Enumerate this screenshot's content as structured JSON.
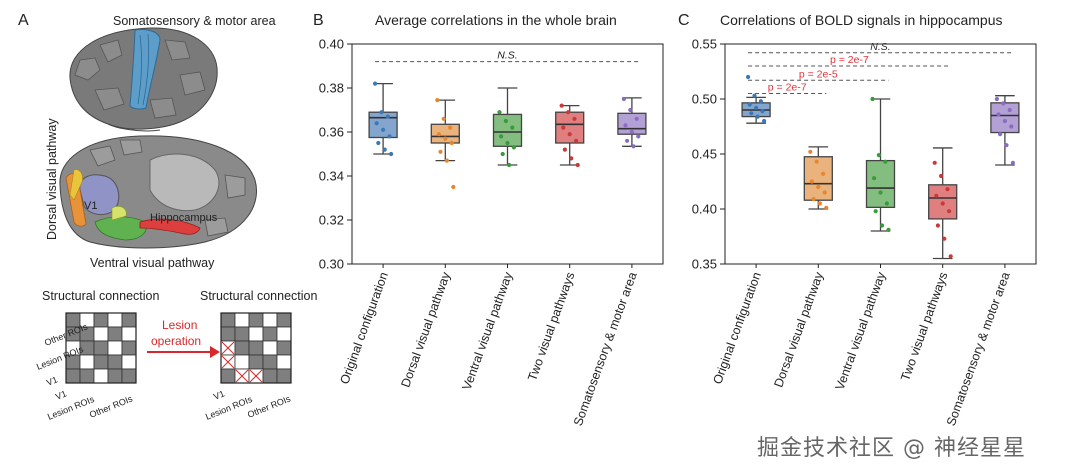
{
  "panel_a": {
    "letter": "A",
    "somatosensory_label": "Somatosensory & motor area",
    "dorsal_label": "Dorsal visual pathway",
    "ventral_label": "Ventral visual pathway",
    "v1_label": "V1",
    "hippocampus_label": "Hippocampus",
    "sc_title_left": "Structural connection",
    "sc_title_right": "Structural connection",
    "lesion_label_1": "Lesion",
    "lesion_label_2": "operation",
    "row_labels": [
      "Other ROIs",
      "Lesion ROIs",
      "V1"
    ],
    "col_labels": [
      "V1",
      "Lesion ROIs",
      "Other ROIs"
    ]
  },
  "watermark": "掘金技术社区 @ 神经星星",
  "chart_data": [
    {
      "panel": "B",
      "type": "box",
      "title": "Average correlations in the whole brain",
      "ylim": [
        0.3,
        0.4
      ],
      "yticks": [
        "0.30",
        "0.32",
        "0.34",
        "0.36",
        "0.38",
        "0.40"
      ],
      "yticks_values": [
        0.3,
        0.32,
        0.34,
        0.36,
        0.38,
        0.4
      ],
      "categories": [
        "Original configuration",
        "Dorsal visual pathway",
        "Ventral visual pathway",
        "Two visual pathways",
        "Somatosensory & motor area"
      ],
      "colors": [
        "#6f95c4",
        "#e6a466",
        "#6db36a",
        "#d9686a",
        "#a690cf"
      ],
      "dot_colors": [
        "#3b78b8",
        "#e8862e",
        "#3a9a3a",
        "#c83a3a",
        "#8a6cc0"
      ],
      "boxes": [
        {
          "min": 0.35,
          "q1": 0.3575,
          "median": 0.3665,
          "q3": 0.369,
          "max": 0.382,
          "points": [
            0.382,
            0.369,
            0.367,
            0.364,
            0.361,
            0.358,
            0.355,
            0.352,
            0.35
          ]
        },
        {
          "min": 0.347,
          "q1": 0.355,
          "median": 0.358,
          "q3": 0.3635,
          "max": 0.3745,
          "points": [
            0.3745,
            0.366,
            0.362,
            0.359,
            0.357,
            0.355,
            0.351,
            0.347,
            0.335
          ]
        },
        {
          "min": 0.345,
          "q1": 0.3535,
          "median": 0.36,
          "q3": 0.368,
          "max": 0.38,
          "points": [
            0.369,
            0.365,
            0.362,
            0.358,
            0.355,
            0.353,
            0.35,
            0.345
          ]
        },
        {
          "min": 0.345,
          "q1": 0.355,
          "median": 0.3635,
          "q3": 0.369,
          "max": 0.372,
          "points": [
            0.372,
            0.369,
            0.366,
            0.362,
            0.359,
            0.356,
            0.352,
            0.348,
            0.345
          ]
        },
        {
          "min": 0.3535,
          "q1": 0.359,
          "median": 0.3615,
          "q3": 0.3685,
          "max": 0.3755,
          "points": [
            0.375,
            0.37,
            0.366,
            0.363,
            0.36,
            0.358,
            0.356,
            0.3535
          ]
        }
      ],
      "annotations": [
        {
          "text": "N.S.",
          "y": 0.392,
          "x_from": 0,
          "x_to": 4
        }
      ]
    },
    {
      "panel": "C",
      "type": "box",
      "title": "Correlations of BOLD signals in hippocampus",
      "ylim": [
        0.35,
        0.55
      ],
      "yticks": [
        "0.35",
        "0.40",
        "0.45",
        "0.50",
        "0.55"
      ],
      "yticks_values": [
        0.35,
        0.4,
        0.45,
        0.5,
        0.55
      ],
      "categories": [
        "Original configuration",
        "Dorsal visual pathway",
        "Ventral visual pathway",
        "Two visual pathways",
        "Somatosensory & motor area"
      ],
      "colors": [
        "#6f95c4",
        "#e6a466",
        "#6db36a",
        "#d9686a",
        "#a690cf"
      ],
      "dot_colors": [
        "#3b78b8",
        "#e8862e",
        "#3a9a3a",
        "#c83a3a",
        "#8a6cc0"
      ],
      "boxes": [
        {
          "min": 0.478,
          "q1": 0.484,
          "median": 0.49,
          "q3": 0.4965,
          "max": 0.5015,
          "points": [
            0.52,
            0.503,
            0.498,
            0.495,
            0.492,
            0.489,
            0.487,
            0.484,
            0.48
          ]
        },
        {
          "min": 0.4,
          "q1": 0.408,
          "median": 0.423,
          "q3": 0.4475,
          "max": 0.4565,
          "points": [
            0.452,
            0.443,
            0.432,
            0.425,
            0.42,
            0.415,
            0.409,
            0.405,
            0.401
          ]
        },
        {
          "min": 0.38,
          "q1": 0.4015,
          "median": 0.419,
          "q3": 0.444,
          "max": 0.5,
          "points": [
            0.5,
            0.449,
            0.443,
            0.428,
            0.415,
            0.405,
            0.398,
            0.385,
            0.381
          ]
        },
        {
          "min": 0.355,
          "q1": 0.391,
          "median": 0.41,
          "q3": 0.422,
          "max": 0.4555,
          "points": [
            0.442,
            0.43,
            0.418,
            0.412,
            0.405,
            0.398,
            0.385,
            0.373,
            0.357
          ]
        },
        {
          "min": 0.44,
          "q1": 0.4695,
          "median": 0.485,
          "q3": 0.4965,
          "max": 0.503,
          "points": [
            0.5,
            0.496,
            0.49,
            0.486,
            0.48,
            0.475,
            0.468,
            0.458,
            0.442
          ]
        }
      ],
      "annotations": [
        {
          "text": "N.S.",
          "y": 0.542,
          "x_from": 0,
          "x_to": 4,
          "color": "#333333",
          "italic": true
        },
        {
          "text": "p = 2e-7",
          "y": 0.53,
          "x_from": 0,
          "x_to": 3,
          "color": "#e0343a"
        },
        {
          "text": "p = 2e-5",
          "y": 0.517,
          "x_from": 0,
          "x_to": 2,
          "color": "#e0343a"
        },
        {
          "text": "p = 2e-7",
          "y": 0.505,
          "x_from": 0,
          "x_to": 1,
          "color": "#e0343a"
        }
      ]
    }
  ]
}
